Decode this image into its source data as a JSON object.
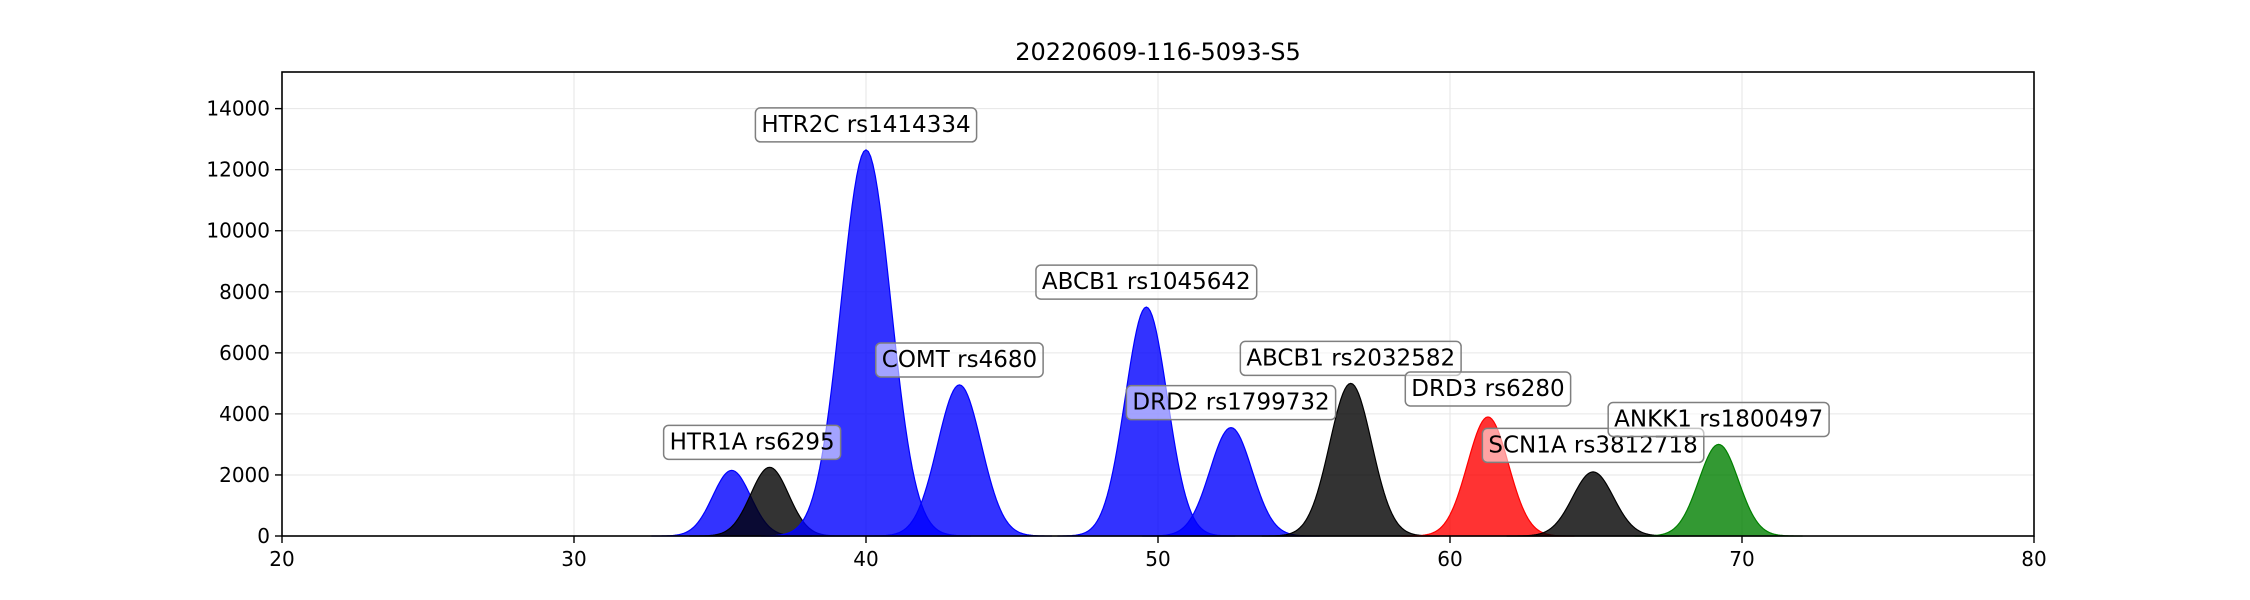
{
  "chart_data": {
    "type": "area",
    "title": "20220609-116-5093-S5",
    "xlabel": "",
    "ylabel": "",
    "xlim": [
      20,
      80
    ],
    "ylim": [
      0,
      15200
    ],
    "xticks": [
      "20",
      "30",
      "40",
      "50",
      "60",
      "70",
      "80"
    ],
    "yticks": [
      "0",
      "2000",
      "4000",
      "6000",
      "8000",
      "10000",
      "12000",
      "14000"
    ],
    "grid": true,
    "peaks": [
      {
        "label": "HTR1A rs6295",
        "center": 35.4,
        "height": 2150,
        "sigma": 0.65,
        "color": "#0000ff",
        "label_x": 36.1,
        "label_y": 3100
      },
      {
        "label": "",
        "center": 36.7,
        "height": 2250,
        "sigma": 0.65,
        "color": "#000000"
      },
      {
        "label": "HTR2C rs1414334",
        "center": 40.0,
        "height": 12650,
        "sigma": 0.85,
        "color": "#0000ff",
        "label_x": 40.0,
        "label_y": 13500
      },
      {
        "label": "COMT rs4680",
        "center": 43.2,
        "height": 4950,
        "sigma": 0.75,
        "color": "#0000ff",
        "label_x": 43.2,
        "label_y": 5800
      },
      {
        "label": "ABCB1 rs1045642",
        "center": 49.6,
        "height": 7500,
        "sigma": 0.72,
        "color": "#0000ff",
        "label_x": 49.6,
        "label_y": 8350
      },
      {
        "label": "DRD2 rs1799732",
        "center": 52.5,
        "height": 3550,
        "sigma": 0.72,
        "color": "#0000ff",
        "label_x": 52.5,
        "label_y": 4400
      },
      {
        "label": "ABCB1 rs2032582",
        "center": 56.6,
        "height": 5000,
        "sigma": 0.72,
        "color": "#000000",
        "label_x": 56.6,
        "label_y": 5850
      },
      {
        "label": "DRD3 rs6280",
        "center": 61.3,
        "height": 3900,
        "sigma": 0.7,
        "color": "#ff0000",
        "label_x": 61.3,
        "label_y": 4850
      },
      {
        "label": "SCN1A rs3812718",
        "center": 64.9,
        "height": 2100,
        "sigma": 0.7,
        "color": "#000000",
        "label_x": 64.9,
        "label_y": 3000
      },
      {
        "label": "ANKK1 rs1800497",
        "center": 69.2,
        "height": 3000,
        "sigma": 0.68,
        "color": "#008000",
        "label_x": 69.2,
        "label_y": 3850
      }
    ]
  }
}
